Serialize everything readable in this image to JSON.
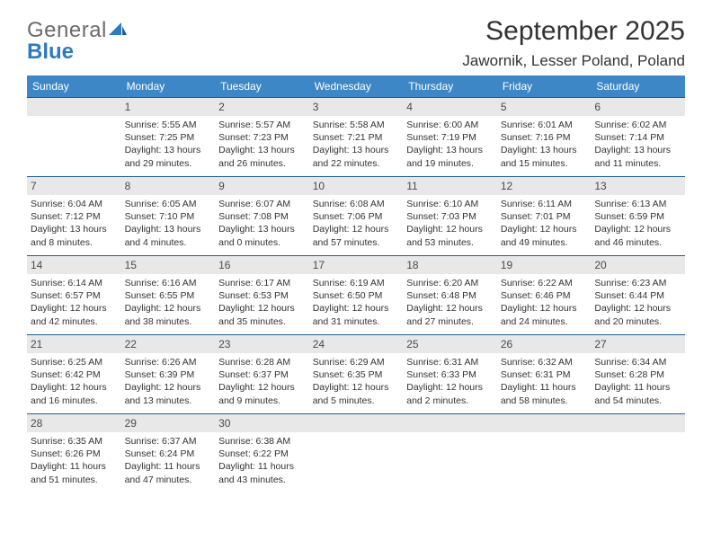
{
  "brand": {
    "word1": "General",
    "word2": "Blue"
  },
  "title": "September 2025",
  "location": "Jawornik, Lesser Poland, Poland",
  "colors": {
    "header_bg": "#3d87c7",
    "header_text": "#ffffff",
    "daynum_bg": "#e8e8e8",
    "day_border": "#1f5f99",
    "text": "#333333",
    "logo_gray": "#6b6b6b",
    "logo_blue": "#2d7bbf"
  },
  "weekdays": [
    "Sunday",
    "Monday",
    "Tuesday",
    "Wednesday",
    "Thursday",
    "Friday",
    "Saturday"
  ],
  "weeks": [
    [
      null,
      {
        "n": "1",
        "sr": "5:55 AM",
        "ss": "7:25 PM",
        "d1": "Daylight: 13 hours",
        "d2": "and 29 minutes."
      },
      {
        "n": "2",
        "sr": "5:57 AM",
        "ss": "7:23 PM",
        "d1": "Daylight: 13 hours",
        "d2": "and 26 minutes."
      },
      {
        "n": "3",
        "sr": "5:58 AM",
        "ss": "7:21 PM",
        "d1": "Daylight: 13 hours",
        "d2": "and 22 minutes."
      },
      {
        "n": "4",
        "sr": "6:00 AM",
        "ss": "7:19 PM",
        "d1": "Daylight: 13 hours",
        "d2": "and 19 minutes."
      },
      {
        "n": "5",
        "sr": "6:01 AM",
        "ss": "7:16 PM",
        "d1": "Daylight: 13 hours",
        "d2": "and 15 minutes."
      },
      {
        "n": "6",
        "sr": "6:02 AM",
        "ss": "7:14 PM",
        "d1": "Daylight: 13 hours",
        "d2": "and 11 minutes."
      }
    ],
    [
      {
        "n": "7",
        "sr": "6:04 AM",
        "ss": "7:12 PM",
        "d1": "Daylight: 13 hours",
        "d2": "and 8 minutes."
      },
      {
        "n": "8",
        "sr": "6:05 AM",
        "ss": "7:10 PM",
        "d1": "Daylight: 13 hours",
        "d2": "and 4 minutes."
      },
      {
        "n": "9",
        "sr": "6:07 AM",
        "ss": "7:08 PM",
        "d1": "Daylight: 13 hours",
        "d2": "and 0 minutes."
      },
      {
        "n": "10",
        "sr": "6:08 AM",
        "ss": "7:06 PM",
        "d1": "Daylight: 12 hours",
        "d2": "and 57 minutes."
      },
      {
        "n": "11",
        "sr": "6:10 AM",
        "ss": "7:03 PM",
        "d1": "Daylight: 12 hours",
        "d2": "and 53 minutes."
      },
      {
        "n": "12",
        "sr": "6:11 AM",
        "ss": "7:01 PM",
        "d1": "Daylight: 12 hours",
        "d2": "and 49 minutes."
      },
      {
        "n": "13",
        "sr": "6:13 AM",
        "ss": "6:59 PM",
        "d1": "Daylight: 12 hours",
        "d2": "and 46 minutes."
      }
    ],
    [
      {
        "n": "14",
        "sr": "6:14 AM",
        "ss": "6:57 PM",
        "d1": "Daylight: 12 hours",
        "d2": "and 42 minutes."
      },
      {
        "n": "15",
        "sr": "6:16 AM",
        "ss": "6:55 PM",
        "d1": "Daylight: 12 hours",
        "d2": "and 38 minutes."
      },
      {
        "n": "16",
        "sr": "6:17 AM",
        "ss": "6:53 PM",
        "d1": "Daylight: 12 hours",
        "d2": "and 35 minutes."
      },
      {
        "n": "17",
        "sr": "6:19 AM",
        "ss": "6:50 PM",
        "d1": "Daylight: 12 hours",
        "d2": "and 31 minutes."
      },
      {
        "n": "18",
        "sr": "6:20 AM",
        "ss": "6:48 PM",
        "d1": "Daylight: 12 hours",
        "d2": "and 27 minutes."
      },
      {
        "n": "19",
        "sr": "6:22 AM",
        "ss": "6:46 PM",
        "d1": "Daylight: 12 hours",
        "d2": "and 24 minutes."
      },
      {
        "n": "20",
        "sr": "6:23 AM",
        "ss": "6:44 PM",
        "d1": "Daylight: 12 hours",
        "d2": "and 20 minutes."
      }
    ],
    [
      {
        "n": "21",
        "sr": "6:25 AM",
        "ss": "6:42 PM",
        "d1": "Daylight: 12 hours",
        "d2": "and 16 minutes."
      },
      {
        "n": "22",
        "sr": "6:26 AM",
        "ss": "6:39 PM",
        "d1": "Daylight: 12 hours",
        "d2": "and 13 minutes."
      },
      {
        "n": "23",
        "sr": "6:28 AM",
        "ss": "6:37 PM",
        "d1": "Daylight: 12 hours",
        "d2": "and 9 minutes."
      },
      {
        "n": "24",
        "sr": "6:29 AM",
        "ss": "6:35 PM",
        "d1": "Daylight: 12 hours",
        "d2": "and 5 minutes."
      },
      {
        "n": "25",
        "sr": "6:31 AM",
        "ss": "6:33 PM",
        "d1": "Daylight: 12 hours",
        "d2": "and 2 minutes."
      },
      {
        "n": "26",
        "sr": "6:32 AM",
        "ss": "6:31 PM",
        "d1": "Daylight: 11 hours",
        "d2": "and 58 minutes."
      },
      {
        "n": "27",
        "sr": "6:34 AM",
        "ss": "6:28 PM",
        "d1": "Daylight: 11 hours",
        "d2": "and 54 minutes."
      }
    ],
    [
      {
        "n": "28",
        "sr": "6:35 AM",
        "ss": "6:26 PM",
        "d1": "Daylight: 11 hours",
        "d2": "and 51 minutes."
      },
      {
        "n": "29",
        "sr": "6:37 AM",
        "ss": "6:24 PM",
        "d1": "Daylight: 11 hours",
        "d2": "and 47 minutes."
      },
      {
        "n": "30",
        "sr": "6:38 AM",
        "ss": "6:22 PM",
        "d1": "Daylight: 11 hours",
        "d2": "and 43 minutes."
      },
      null,
      null,
      null,
      null
    ]
  ]
}
